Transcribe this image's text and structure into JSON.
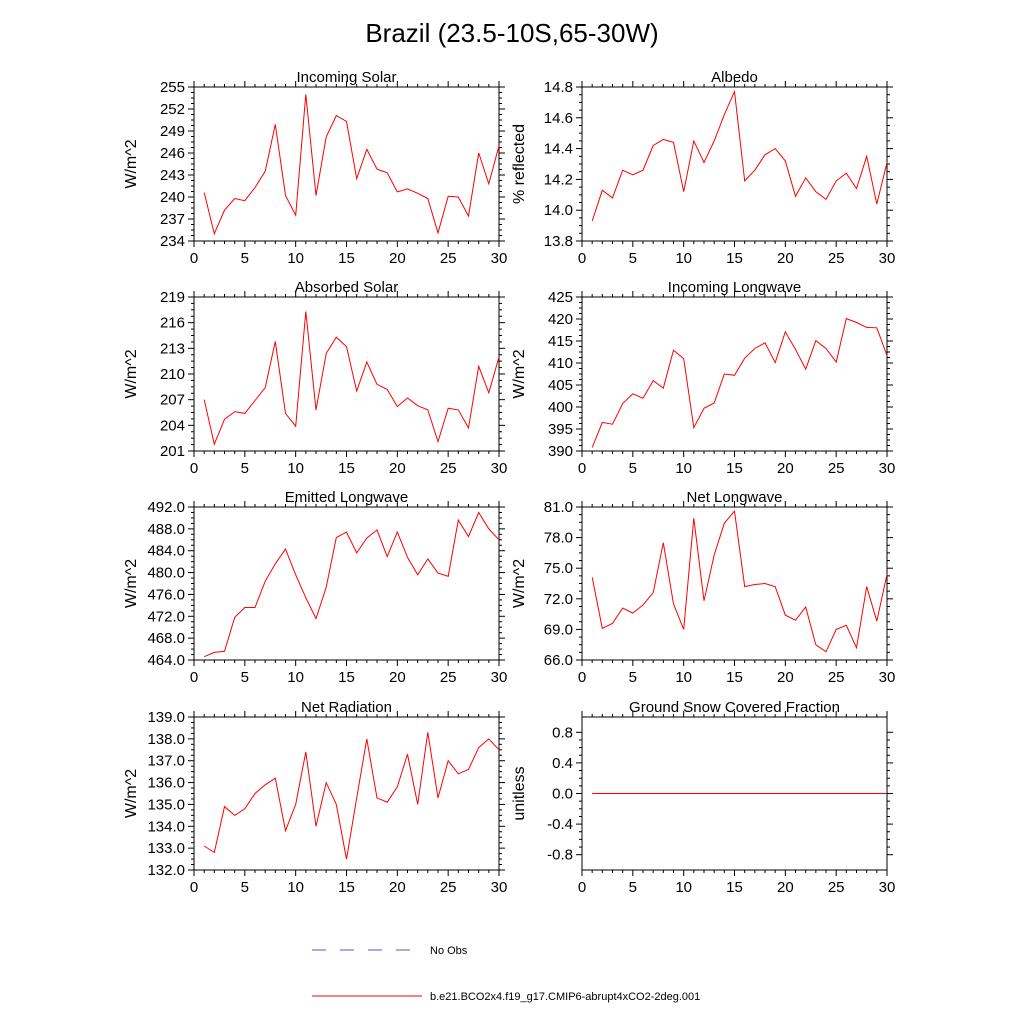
{
  "figure": {
    "title": "Brazil (23.5-10S,65-30W)",
    "legend": [
      {
        "label": "No Obs",
        "color": "#5555cc",
        "style": "dashed"
      },
      {
        "label": "b.e21.BCO2x4.f19_g17.CMIP6-abrupt4xCO2-2deg.001",
        "color": "#ff0000",
        "style": "solid"
      }
    ]
  },
  "chart_data": [
    {
      "type": "line",
      "title": "Incoming Solar",
      "ylabel": "W/m^2",
      "xlim": [
        0,
        30
      ],
      "xticks": [
        "0",
        "5",
        "10",
        "15",
        "20",
        "25",
        "30"
      ],
      "ylim": [
        234,
        255
      ],
      "yticks": [
        "234",
        "237",
        "240",
        "243",
        "246",
        "249",
        "252",
        "255"
      ],
      "series": [
        {
          "name": "b.e21.BCO2x4.f19_g17.CMIP6-abrupt4xCO2-2deg.001",
          "color": "#ff0000",
          "x": [
            1,
            2,
            3,
            4,
            5,
            6,
            7,
            8,
            9,
            10,
            11,
            12,
            13,
            14,
            15,
            16,
            17,
            18,
            19,
            20,
            21,
            22,
            23,
            24,
            25,
            26,
            27,
            28,
            29,
            30
          ],
          "values": [
            240.6,
            235.0,
            238.2,
            239.8,
            239.5,
            241.3,
            243.5,
            249.9,
            240.2,
            237.5,
            254.0,
            240.2,
            248.2,
            251.1,
            250.3,
            242.5,
            246.5,
            243.8,
            243.3,
            240.7,
            241.1,
            240.5,
            239.8,
            235.1,
            240.1,
            240.0,
            237.4,
            246.0,
            241.8,
            247.0
          ]
        }
      ]
    },
    {
      "type": "line",
      "title": "Albedo",
      "ylabel": "% reflected",
      "xlim": [
        0,
        30
      ],
      "xticks": [
        "0",
        "5",
        "10",
        "15",
        "20",
        "25",
        "30"
      ],
      "ylim": [
        13.8,
        14.8
      ],
      "yticks": [
        "13.8",
        "14.0",
        "14.2",
        "14.4",
        "14.6",
        "14.8"
      ],
      "series": [
        {
          "name": "b.e21.BCO2x4.f19_g17.CMIP6-abrupt4xCO2-2deg.001",
          "color": "#ff0000",
          "x": [
            1,
            2,
            3,
            4,
            5,
            6,
            7,
            8,
            9,
            10,
            11,
            12,
            13,
            14,
            15,
            16,
            17,
            18,
            19,
            20,
            21,
            22,
            23,
            24,
            25,
            26,
            27,
            28,
            29,
            30
          ],
          "values": [
            13.93,
            14.13,
            14.08,
            14.26,
            14.23,
            14.26,
            14.42,
            14.46,
            14.44,
            14.12,
            14.45,
            14.31,
            14.45,
            14.62,
            14.77,
            14.19,
            14.26,
            14.36,
            14.4,
            14.32,
            14.09,
            14.21,
            14.12,
            14.07,
            14.19,
            14.24,
            14.14,
            14.35,
            14.04,
            14.31
          ]
        }
      ]
    },
    {
      "type": "line",
      "title": "Absorbed Solar",
      "ylabel": "W/m^2",
      "xlim": [
        0,
        30
      ],
      "xticks": [
        "0",
        "5",
        "10",
        "15",
        "20",
        "25",
        "30"
      ],
      "ylim": [
        201,
        219
      ],
      "yticks": [
        "201",
        "204",
        "207",
        "210",
        "213",
        "216",
        "219"
      ],
      "series": [
        {
          "name": "b.e21.BCO2x4.f19_g17.CMIP6-abrupt4xCO2-2deg.001",
          "color": "#ff0000",
          "x": [
            1,
            2,
            3,
            4,
            5,
            6,
            7,
            8,
            9,
            10,
            11,
            12,
            13,
            14,
            15,
            16,
            17,
            18,
            19,
            20,
            21,
            22,
            23,
            24,
            25,
            26,
            27,
            28,
            29,
            30
          ],
          "values": [
            207.0,
            201.8,
            204.7,
            205.6,
            205.4,
            206.9,
            208.4,
            213.8,
            205.4,
            203.9,
            217.3,
            205.8,
            212.4,
            214.3,
            213.2,
            208.0,
            211.4,
            208.8,
            208.2,
            206.2,
            207.2,
            206.3,
            205.8,
            202.1,
            206.0,
            205.8,
            203.7,
            210.9,
            207.8,
            212.0
          ]
        }
      ]
    },
    {
      "type": "line",
      "title": "Incoming Longwave",
      "ylabel": "W/m^2",
      "xlim": [
        0,
        30
      ],
      "xticks": [
        "0",
        "5",
        "10",
        "15",
        "20",
        "25",
        "30"
      ],
      "ylim": [
        390,
        425
      ],
      "yticks": [
        "390",
        "395",
        "400",
        "405",
        "410",
        "415",
        "420",
        "425"
      ],
      "series": [
        {
          "name": "b.e21.BCO2x4.f19_g17.CMIP6-abrupt4xCO2-2deg.001",
          "color": "#ff0000",
          "x": [
            1,
            2,
            3,
            4,
            5,
            6,
            7,
            8,
            9,
            10,
            11,
            12,
            13,
            14,
            15,
            16,
            17,
            18,
            19,
            20,
            21,
            22,
            23,
            24,
            25,
            26,
            27,
            28,
            29,
            30
          ],
          "values": [
            390.8,
            396.5,
            396.1,
            400.8,
            403.0,
            402.0,
            406.0,
            404.3,
            412.9,
            411.0,
            395.3,
            399.7,
            400.9,
            407.5,
            407.2,
            411.1,
            413.3,
            414.6,
            410.1,
            417.1,
            413.1,
            408.6,
            415.1,
            413.3,
            410.2,
            420.1,
            419.2,
            418.1,
            418.0,
            411.7
          ]
        }
      ]
    },
    {
      "type": "line",
      "title": "Emitted Longwave",
      "ylabel": "W/m^2",
      "xlim": [
        0,
        30
      ],
      "xticks": [
        "0",
        "5",
        "10",
        "15",
        "20",
        "25",
        "30"
      ],
      "ylim": [
        464,
        492
      ],
      "yticks": [
        "464.0",
        "468.0",
        "472.0",
        "476.0",
        "480.0",
        "484.0",
        "488.0",
        "492.0"
      ],
      "series": [
        {
          "name": "b.e21.BCO2x4.f19_g17.CMIP6-abrupt4xCO2-2deg.001",
          "color": "#ff0000",
          "x": [
            1,
            2,
            3,
            4,
            5,
            6,
            7,
            8,
            9,
            10,
            11,
            12,
            13,
            14,
            15,
            16,
            17,
            18,
            19,
            20,
            21,
            22,
            23,
            24,
            25,
            26,
            27,
            28,
            29,
            30
          ],
          "values": [
            464.6,
            465.4,
            465.6,
            471.8,
            473.6,
            473.6,
            478.4,
            481.6,
            484.3,
            479.6,
            475.4,
            471.6,
            477.3,
            486.4,
            487.4,
            483.6,
            486.3,
            487.8,
            482.9,
            487.4,
            482.8,
            479.6,
            482.5,
            479.9,
            479.3,
            489.6,
            486.6,
            491.0,
            488.0,
            486.0
          ]
        }
      ]
    },
    {
      "type": "line",
      "title": "Net Longwave",
      "ylabel": "W/m^2",
      "xlim": [
        0,
        30
      ],
      "xticks": [
        "0",
        "5",
        "10",
        "15",
        "20",
        "25",
        "30"
      ],
      "ylim": [
        66,
        81
      ],
      "yticks": [
        "66.0",
        "69.0",
        "72.0",
        "75.0",
        "78.0",
        "81.0"
      ],
      "series": [
        {
          "name": "b.e21.BCO2x4.f19_g17.CMIP6-abrupt4xCO2-2deg.001",
          "color": "#ff0000",
          "x": [
            1,
            2,
            3,
            4,
            5,
            6,
            7,
            8,
            9,
            10,
            11,
            12,
            13,
            14,
            15,
            16,
            17,
            18,
            19,
            20,
            21,
            22,
            23,
            24,
            25,
            26,
            27,
            28,
            29,
            30
          ],
          "values": [
            74.1,
            69.1,
            69.6,
            71.1,
            70.6,
            71.4,
            72.6,
            77.5,
            71.5,
            69.0,
            79.9,
            71.8,
            76.3,
            79.4,
            80.6,
            73.2,
            73.4,
            73.5,
            73.2,
            70.4,
            69.9,
            71.2,
            67.5,
            66.8,
            69.0,
            69.4,
            67.2,
            73.2,
            69.8,
            74.4
          ]
        }
      ]
    },
    {
      "type": "line",
      "title": "Net Radiation",
      "ylabel": "W/m^2",
      "xlim": [
        0,
        30
      ],
      "xticks": [
        "0",
        "5",
        "10",
        "15",
        "20",
        "25",
        "30"
      ],
      "ylim": [
        132,
        139
      ],
      "yticks": [
        "132.0",
        "133.0",
        "134.0",
        "135.0",
        "136.0",
        "137.0",
        "138.0",
        "139.0"
      ],
      "series": [
        {
          "name": "b.e21.BCO2x4.f19_g17.CMIP6-abrupt4xCO2-2deg.001",
          "color": "#ff0000",
          "x": [
            1,
            2,
            3,
            4,
            5,
            6,
            7,
            8,
            9,
            10,
            11,
            12,
            13,
            14,
            15,
            16,
            17,
            18,
            19,
            20,
            21,
            22,
            23,
            24,
            25,
            26,
            27,
            28,
            29,
            30
          ],
          "values": [
            133.1,
            132.8,
            134.9,
            134.5,
            134.8,
            135.5,
            135.9,
            136.2,
            133.8,
            135.0,
            137.4,
            134.0,
            136.0,
            135.0,
            132.5,
            135.3,
            138.0,
            135.3,
            135.1,
            135.8,
            137.3,
            135.0,
            138.3,
            135.3,
            137.0,
            136.4,
            136.6,
            137.6,
            138.0,
            137.5
          ]
        }
      ]
    },
    {
      "type": "line",
      "title": "Ground Snow Covered Fraction",
      "ylabel": "unitless",
      "xlim": [
        0,
        30
      ],
      "xticks": [
        "0",
        "5",
        "10",
        "15",
        "20",
        "25",
        "30"
      ],
      "ylim": [
        -1.0,
        1.0
      ],
      "yticks": [
        "-0.8",
        "-0.4",
        "0.0",
        "0.4",
        "0.8"
      ],
      "yticks_values": [
        -0.8,
        -0.4,
        0.0,
        0.4,
        0.8
      ],
      "series": [
        {
          "name": "b.e21.BCO2x4.f19_g17.CMIP6-abrupt4xCO2-2deg.001",
          "color": "#ff0000",
          "x": [
            1,
            2,
            3,
            4,
            5,
            6,
            7,
            8,
            9,
            10,
            11,
            12,
            13,
            14,
            15,
            16,
            17,
            18,
            19,
            20,
            21,
            22,
            23,
            24,
            25,
            26,
            27,
            28,
            29,
            30
          ],
          "values": [
            0,
            0,
            0,
            0,
            0,
            0,
            0,
            0,
            0,
            0,
            0,
            0,
            0,
            0,
            0,
            0,
            0,
            0,
            0,
            0,
            0,
            0,
            0,
            0,
            0,
            0,
            0,
            0,
            0,
            0
          ]
        }
      ]
    }
  ]
}
